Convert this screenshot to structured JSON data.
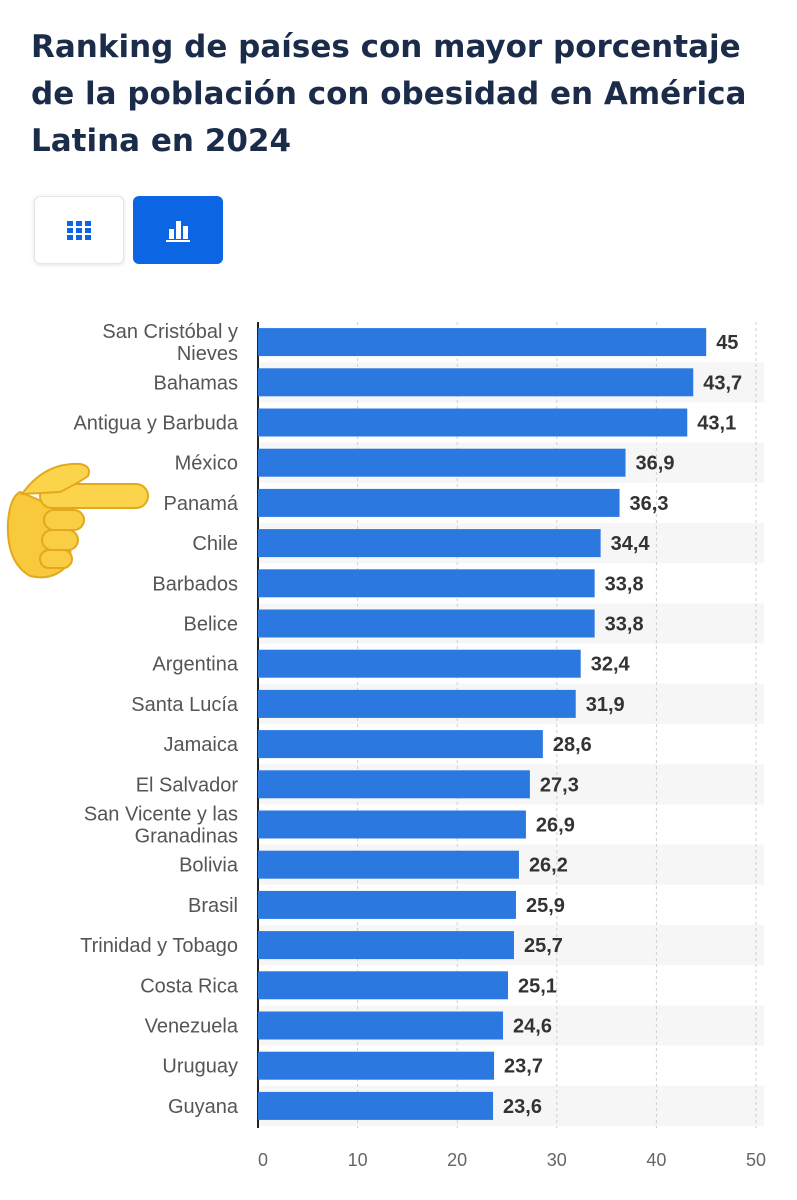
{
  "title": "Ranking de países con mayor porcentaje de la población con obesidad en América Latina en 2024",
  "view_toggle": {
    "table_icon": "grid-icon",
    "chart_icon": "bar-chart-icon",
    "active": "chart"
  },
  "colors": {
    "bar": "#2b78e0",
    "title": "#1b2c4a",
    "active_button": "#0c66e4",
    "label": "#555555",
    "value": "#333333",
    "stripe": "#f6f6f6"
  },
  "annotation": {
    "emoji": "👉"
  },
  "chart_data": {
    "type": "bar",
    "orientation": "horizontal",
    "title": "",
    "xlabel": "",
    "ylabel": "",
    "categories": [
      "San Cristóbal y Nieves",
      "Bahamas",
      "Antigua y Barbuda",
      "México",
      "Panamá",
      "Chile",
      "Barbados",
      "Belice",
      "Argentina",
      "Santa Lucía",
      "Jamaica",
      "El Salvador",
      "San Vicente y las Granadinas",
      "Bolivia",
      "Brasil",
      "Trinidad y Tobago",
      "Costa Rica",
      "Venezuela",
      "Uruguay",
      "Guyana"
    ],
    "values": [
      45,
      43.7,
      43.1,
      36.9,
      36.3,
      34.4,
      33.8,
      33.8,
      32.4,
      31.9,
      28.6,
      27.3,
      26.9,
      26.2,
      25.9,
      25.7,
      25.1,
      24.6,
      23.7,
      23.6
    ],
    "value_labels": [
      "45",
      "43,7",
      "43,1",
      "36,9",
      "36,3",
      "34,4",
      "33,8",
      "33,8",
      "32,4",
      "31,9",
      "28,6",
      "27,3",
      "26,9",
      "26,2",
      "25,9",
      "25,7",
      "25,1",
      "24,6",
      "23,7",
      "23,6"
    ],
    "xlim": [
      0,
      50
    ],
    "xticks": [
      0,
      10,
      20,
      30,
      40,
      50
    ],
    "grid": "vertical dashed",
    "legend": "none"
  }
}
